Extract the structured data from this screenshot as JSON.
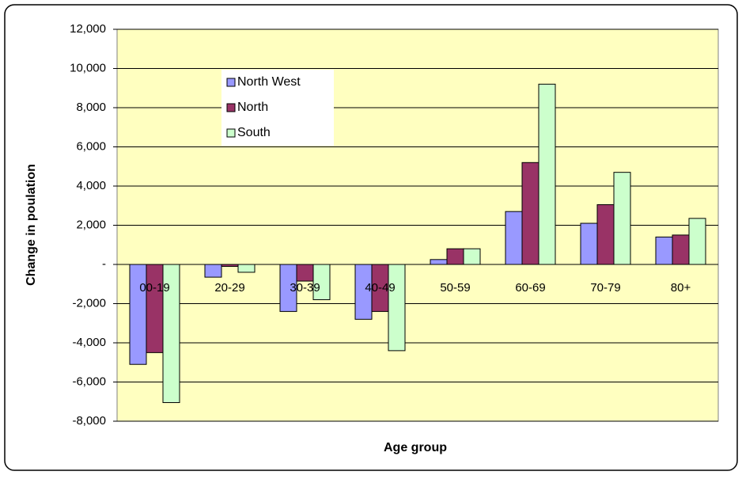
{
  "chart_data": {
    "type": "bar",
    "x_label": "Age group",
    "y_label": "Change in poulation",
    "categories": [
      "00-19",
      "20-29",
      "30-39",
      "40-49",
      "50-59",
      "60-69",
      "70-79",
      "80+"
    ],
    "series": [
      {
        "name": "North West",
        "color": "#9999ff",
        "values": [
          -5100,
          -650,
          -2400,
          -2800,
          250,
          2700,
          2100,
          1400
        ]
      },
      {
        "name": "North",
        "color": "#993366",
        "values": [
          -4500,
          -100,
          -850,
          -2400,
          800,
          5200,
          3050,
          1500
        ]
      },
      {
        "name": "South",
        "color": "#ccffcc",
        "values": [
          -7050,
          -400,
          -1800,
          -4400,
          800,
          9200,
          4700,
          2350
        ]
      }
    ],
    "ylim": [
      -8000,
      12000
    ],
    "yticks": [
      {
        "value": -8000,
        "label": "-8,000"
      },
      {
        "value": -6000,
        "label": "-6,000"
      },
      {
        "value": -4000,
        "label": "-4,000"
      },
      {
        "value": -2000,
        "label": "-2,000"
      },
      {
        "value": 0,
        "label": "-"
      },
      {
        "value": 2000,
        "label": "2,000"
      },
      {
        "value": 4000,
        "label": "4,000"
      },
      {
        "value": 6000,
        "label": "6,000"
      },
      {
        "value": 8000,
        "label": "8,000"
      },
      {
        "value": 10000,
        "label": "10,000"
      },
      {
        "value": 12000,
        "label": "12,000"
      }
    ],
    "grid": true,
    "legend": "upper-left"
  }
}
